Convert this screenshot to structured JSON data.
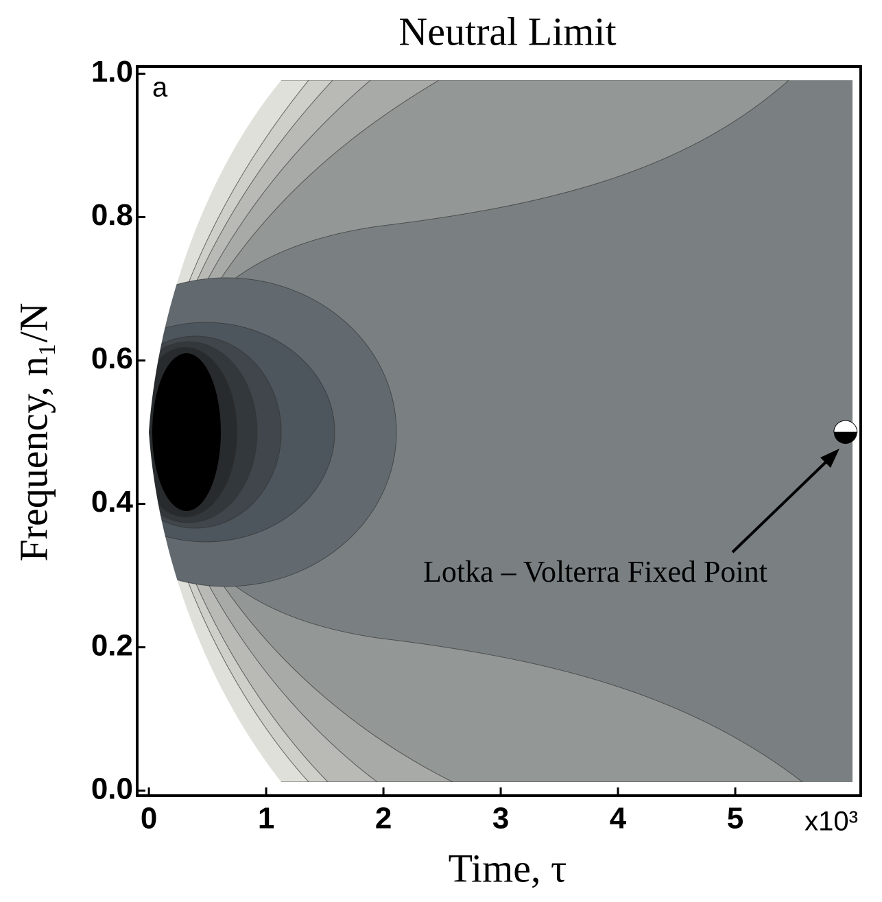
{
  "chart_data": {
    "type": "contour",
    "title": "Neutral Limit",
    "panel_label": "a",
    "x_label": "Time, τ",
    "y_label": "Frequency, n₁/N",
    "x_multiplier": "x10³",
    "annotation": "Lotka – Volterra Fixed Point",
    "fixed_point": {
      "x": 5.94,
      "y": 0.5
    },
    "xlim": [
      -0.1,
      6.07
    ],
    "ylim": [
      -0.007,
      1.01
    ],
    "xticks": [
      0,
      1,
      2,
      3,
      4,
      5
    ],
    "yticks": [
      {
        "value": 0,
        "label": "0.0"
      },
      0.2,
      0.4,
      0.6,
      0.8,
      {
        "value": 1,
        "label": "1.0"
      }
    ]
  }
}
